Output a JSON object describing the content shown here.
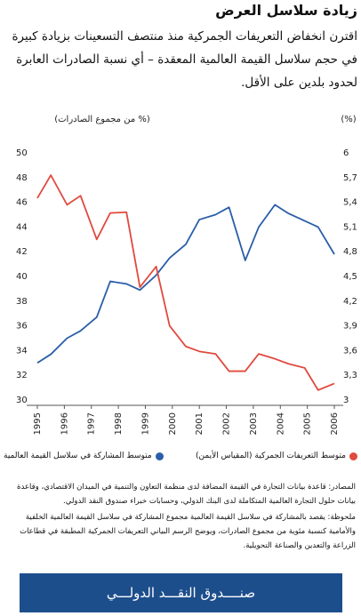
{
  "chart_data": {
    "type": "line",
    "title": "زيادة سلاسل العرض",
    "subtitle": "اقترن انخفاض التعريفات الجمركية منذ منتصف التسعينات بزيادة كبيرة في حجم سلاسل القيمة العالمية المعقدة – أي نسبة الصادرات العابرة لحدود بلدين على الأقل.",
    "y_label": "(% من مجموع الصادرات)",
    "y2_label": "(%)",
    "x": [
      1995,
      1995.5,
      1996.1,
      1996.6,
      1997.2,
      1997.7,
      1998.3,
      1998.8,
      1999.4,
      1999.9,
      2000.5,
      2001.0,
      2001.6,
      2002.1,
      2002.7,
      2003.2,
      2003.8,
      2004.3,
      2004.9,
      2005.4,
      2006.0
    ],
    "xlim": [
      1995,
      2006
    ],
    "xticks": [
      1995,
      1996,
      1997,
      1998,
      1999,
      2000,
      2001,
      2002,
      2003,
      2004,
      2005,
      2006
    ],
    "ylim": [
      30,
      50
    ],
    "yticks": [
      30,
      32,
      34,
      36,
      38,
      40,
      42,
      44,
      46,
      48,
      50
    ],
    "y2lim": [
      3,
      6
    ],
    "y2ticks": [
      3,
      {
        "value": 3.3,
        "label": "3,3"
      },
      {
        "value": 3.6,
        "label": "3,6"
      },
      {
        "value": 3.9,
        "label": "3,9"
      },
      {
        "value": 4.2,
        "label": "4,2"
      },
      {
        "value": 4.5,
        "label": "4,5"
      },
      {
        "value": 4.8,
        "label": "4,8"
      },
      {
        "value": 5.1,
        "label": "5,1"
      },
      {
        "value": 5.4,
        "label": "5,4"
      },
      {
        "value": 5.7,
        "label": "5,7"
      },
      6
    ],
    "series": [
      {
        "name": "متوسط المشاركة في سلاسل القيمة العالمية",
        "color": "#2a5ea8",
        "values": [
          33.0,
          33.7,
          35.0,
          35.6,
          36.7,
          39.6,
          39.4,
          38.9,
          40.1,
          41.5,
          42.6,
          44.6,
          45.0,
          45.6,
          41.3,
          44.0,
          45.8,
          45.1,
          44.5,
          44.0,
          41.8
        ]
      },
      {
        "name": "متوسط التعريفات الجمركية (المقياس الأيمن)",
        "color": "#e04a3f",
        "axis": "y2",
        "values": [
          5.45,
          5.73,
          5.37,
          5.48,
          4.95,
          5.27,
          5.28,
          4.37,
          4.62,
          3.9,
          3.65,
          3.59,
          3.56,
          3.35,
          3.35,
          3.56,
          3.5,
          3.44,
          3.39,
          3.12,
          3.2
        ]
      }
    ],
    "notes": [
      "المصادر: قاعدة بيانات التجارة في القيمة المضافة لدى منظمة التعاون والتنمية في الميدان الاقتصادي، وقاعدة بيانات حلول التجارة العالمية المتكاملة لدى البنك الدولي، وحسابات خبراء صندوق النقد الدولي.",
      "ملحوظة: يقصد بالمشاركة في سلاسل القيمة العالمية مجموع المشاركة في سلاسل القيمة العالمية الخلفية والأمامية كنسبة مئوية من مجموع الصادرات، ويوضح الرسم البياني التعريفات الجمركية المطبقة في قطاعات الزراعة والتعدين والصناعة التحويلية."
    ],
    "source": "صنــــدوق النقـــد الدولـــي"
  }
}
